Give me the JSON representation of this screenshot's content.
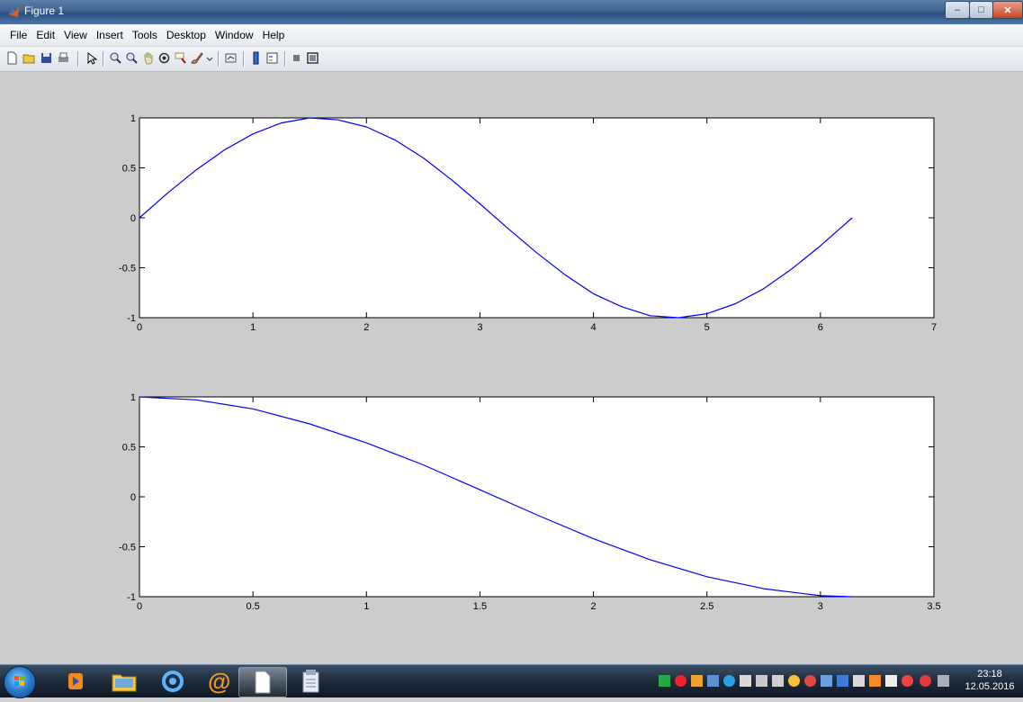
{
  "window": {
    "title": "Figure 1"
  },
  "menu": [
    "File",
    "Edit",
    "View",
    "Insert",
    "Tools",
    "Desktop",
    "Window",
    "Help"
  ],
  "toolbar_icons": [
    "new-figure-icon",
    "open-file-icon",
    "save-icon",
    "print-icon",
    "edit-plot-arrow-icon",
    "zoom-in-icon",
    "zoom-out-icon",
    "pan-hand-icon",
    "rotate-3d-icon",
    "data-cursor-icon",
    "brush-icon",
    "link-plot-icon",
    "insert-colorbar-icon",
    "insert-legend-icon",
    "hide-plot-tools-icon",
    "show-plot-tools-icon"
  ],
  "taskbar": {
    "apps": [
      "start-orb",
      "media-player-app",
      "file-explorer-app",
      "browser-app",
      "mail-agent-app",
      "document-app",
      "notepad-app"
    ],
    "clock_time": "23:18",
    "clock_date": "12.05.2016"
  },
  "chart_data": [
    {
      "type": "line",
      "title": "",
      "xlabel": "",
      "ylabel": "",
      "xlim": [
        0,
        7
      ],
      "ylim": [
        -1,
        1
      ],
      "xticks": [
        "0",
        "1",
        "2",
        "3",
        "4",
        "5",
        "6",
        "7"
      ],
      "yticks": [
        "1",
        "0.5",
        "0",
        "-0.5",
        "-1"
      ],
      "grid": false,
      "series": [
        {
          "color": "#0000ff",
          "x": [
            0,
            0.25,
            0.5,
            0.75,
            1,
            1.25,
            1.5,
            1.75,
            2,
            2.25,
            2.5,
            2.75,
            3,
            3.25,
            3.5,
            3.75,
            4,
            4.25,
            4.5,
            4.75,
            5,
            5.25,
            5.5,
            5.75,
            6,
            6.28
          ],
          "y": [
            0,
            0.25,
            0.48,
            0.68,
            0.84,
            0.95,
            1,
            0.98,
            0.91,
            0.78,
            0.6,
            0.38,
            0.14,
            -0.11,
            -0.35,
            -0.57,
            -0.76,
            -0.89,
            -0.98,
            -1,
            -0.96,
            -0.86,
            -0.71,
            -0.51,
            -0.28,
            0
          ]
        }
      ]
    },
    {
      "type": "line",
      "title": "",
      "xlabel": "",
      "ylabel": "",
      "xlim": [
        0,
        3.5
      ],
      "ylim": [
        -1,
        1
      ],
      "xticks": [
        "0",
        "0.5",
        "1",
        "1.5",
        "2",
        "2.5",
        "3",
        "3.5"
      ],
      "yticks": [
        "1",
        "0.5",
        "0",
        "-0.5",
        "-1"
      ],
      "grid": false,
      "series": [
        {
          "color": "#0000ff",
          "x": [
            0,
            0.25,
            0.5,
            0.75,
            1,
            1.25,
            1.5,
            1.75,
            2,
            2.25,
            2.5,
            2.75,
            3,
            3.14
          ],
          "y": [
            1,
            0.97,
            0.88,
            0.73,
            0.54,
            0.32,
            0.07,
            -0.18,
            -0.42,
            -0.63,
            -0.8,
            -0.92,
            -0.99,
            -1
          ]
        }
      ]
    }
  ]
}
